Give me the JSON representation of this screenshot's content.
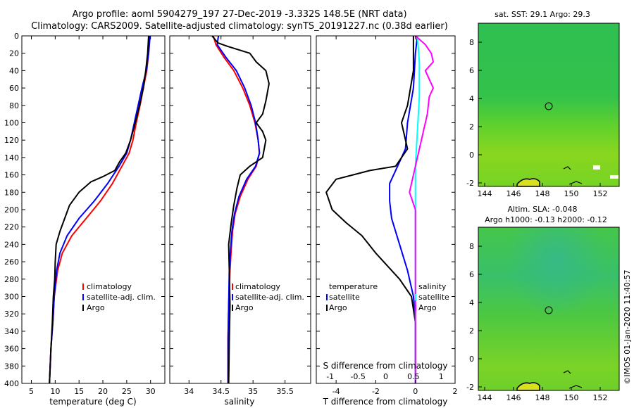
{
  "titles": {
    "line1": "Argo profile: aoml 5904279_197 27-Dec-2019 -3.332S 148.5E (NRT data)",
    "line2": "Climatology: CARS2009. Satellite-adjusted climatology: synTS_20191227.nc (0.38d earlier)"
  },
  "footer": "©IMOS 01-Jan-2020 11:40:57",
  "colors": {
    "climatology": "#ff0000",
    "satellite": "#0000ff",
    "argo": "#000000",
    "argo_sal_diff": "#ff00ff",
    "sat_sal_diff": "#00ffff"
  },
  "chart_data": [
    {
      "type": "line",
      "name": "temperature",
      "xlabel": "temperature (deg C)",
      "xlim": [
        3,
        33
      ],
      "ylim": [
        400,
        0
      ],
      "xticks": [
        5,
        10,
        15,
        20,
        25,
        30
      ],
      "yticks": [
        0,
        20,
        40,
        60,
        80,
        100,
        120,
        140,
        160,
        180,
        200,
        220,
        240,
        260,
        280,
        300,
        320,
        340,
        360,
        380,
        400
      ],
      "legend": [
        "climatology",
        "satellite-adj. clim.",
        "Argo"
      ],
      "series": [
        {
          "name": "climatology",
          "color": "#ff0000",
          "points": [
            [
              29.8,
              0
            ],
            [
              29.6,
              20
            ],
            [
              29.2,
              40
            ],
            [
              28.5,
              60
            ],
            [
              27.8,
              80
            ],
            [
              27.0,
              100
            ],
            [
              26.3,
              120
            ],
            [
              25.5,
              135
            ],
            [
              24.0,
              150
            ],
            [
              22.0,
              170
            ],
            [
              19.5,
              190
            ],
            [
              16.5,
              210
            ],
            [
              13.5,
              230
            ],
            [
              11.5,
              250
            ],
            [
              10.5,
              270
            ],
            [
              9.8,
              300
            ],
            [
              9.5,
              330
            ],
            [
              9.1,
              360
            ],
            [
              8.8,
              400
            ]
          ]
        },
        {
          "name": "satellite-adj. clim.",
          "color": "#0000ff",
          "points": [
            [
              29.9,
              0
            ],
            [
              29.6,
              20
            ],
            [
              29.1,
              40
            ],
            [
              28.2,
              60
            ],
            [
              27.4,
              80
            ],
            [
              26.6,
              100
            ],
            [
              25.8,
              120
            ],
            [
              25.0,
              135
            ],
            [
              23.4,
              150
            ],
            [
              21.0,
              170
            ],
            [
              18.2,
              190
            ],
            [
              15.0,
              210
            ],
            [
              12.5,
              230
            ],
            [
              11.0,
              250
            ],
            [
              10.3,
              270
            ],
            [
              9.8,
              300
            ],
            [
              9.5,
              330
            ],
            [
              9.1,
              360
            ],
            [
              8.8,
              400
            ]
          ]
        },
        {
          "name": "Argo",
          "color": "#000000",
          "points": [
            [
              29.6,
              0
            ],
            [
              29.4,
              20
            ],
            [
              29.0,
              40
            ],
            [
              28.5,
              60
            ],
            [
              27.7,
              80
            ],
            [
              26.8,
              100
            ],
            [
              25.8,
              120
            ],
            [
              24.8,
              135
            ],
            [
              23.5,
              145
            ],
            [
              22.5,
              155
            ],
            [
              20.0,
              162
            ],
            [
              17.5,
              168
            ],
            [
              15.0,
              180
            ],
            [
              13.0,
              195
            ],
            [
              12.0,
              210
            ],
            [
              11.0,
              225
            ],
            [
              10.2,
              240
            ],
            [
              10.0,
              260
            ],
            [
              9.9,
              280
            ],
            [
              9.6,
              300
            ],
            [
              9.4,
              330
            ],
            [
              9.1,
              360
            ],
            [
              8.8,
              400
            ]
          ]
        }
      ]
    },
    {
      "type": "line",
      "name": "salinity",
      "xlabel": "salinity",
      "xlim": [
        33.7,
        35.9
      ],
      "ylim": [
        400,
        0
      ],
      "xticks": [
        34,
        34.5,
        35,
        35.5
      ],
      "legend": [
        "climatology",
        "satellite-adj. clim.",
        "Argo"
      ],
      "series": [
        {
          "name": "climatology",
          "color": "#ff0000",
          "points": [
            [
              34.38,
              0
            ],
            [
              34.42,
              10
            ],
            [
              34.55,
              25
            ],
            [
              34.7,
              40
            ],
            [
              34.84,
              60
            ],
            [
              34.95,
              80
            ],
            [
              35.03,
              100
            ],
            [
              35.08,
              120
            ],
            [
              35.1,
              135
            ],
            [
              35.05,
              150
            ],
            [
              34.92,
              165
            ],
            [
              34.8,
              185
            ],
            [
              34.72,
              205
            ],
            [
              34.68,
              225
            ],
            [
              34.66,
              245
            ],
            [
              34.64,
              270
            ],
            [
              34.62,
              310
            ],
            [
              34.61,
              350
            ],
            [
              34.61,
              400
            ]
          ]
        },
        {
          "name": "satellite-adj. clim.",
          "color": "#0000ff",
          "points": [
            [
              34.46,
              0
            ],
            [
              34.44,
              10
            ],
            [
              34.58,
              25
            ],
            [
              34.74,
              40
            ],
            [
              34.87,
              60
            ],
            [
              34.97,
              80
            ],
            [
              35.04,
              100
            ],
            [
              35.08,
              120
            ],
            [
              35.1,
              135
            ],
            [
              35.04,
              150
            ],
            [
              34.9,
              165
            ],
            [
              34.78,
              185
            ],
            [
              34.71,
              205
            ],
            [
              34.67,
              225
            ],
            [
              34.65,
              245
            ],
            [
              34.63,
              270
            ],
            [
              34.62,
              310
            ],
            [
              34.61,
              350
            ],
            [
              34.61,
              400
            ]
          ]
        },
        {
          "name": "Argo",
          "color": "#000000",
          "points": [
            [
              34.36,
              0
            ],
            [
              34.45,
              8
            ],
            [
              34.6,
              12
            ],
            [
              34.95,
              20
            ],
            [
              35.05,
              30
            ],
            [
              35.2,
              40
            ],
            [
              35.25,
              55
            ],
            [
              35.2,
              75
            ],
            [
              35.15,
              90
            ],
            [
              35.05,
              100
            ],
            [
              35.15,
              110
            ],
            [
              35.2,
              120
            ],
            [
              35.15,
              140
            ],
            [
              34.95,
              150
            ],
            [
              34.8,
              160
            ],
            [
              34.75,
              175
            ],
            [
              34.7,
              195
            ],
            [
              34.66,
              215
            ],
            [
              34.62,
              240
            ],
            [
              34.63,
              270
            ],
            [
              34.64,
              310
            ],
            [
              34.63,
              350
            ],
            [
              34.62,
              400
            ]
          ]
        }
      ]
    },
    {
      "type": "line",
      "name": "differences",
      "xlabel": "T difference from climatology",
      "top_xlabel": "S difference from climatology",
      "xlim": [
        -5,
        2
      ],
      "ylim": [
        400,
        0
      ],
      "xticks": [
        -4,
        -2,
        0,
        2
      ],
      "top_xticks": [
        "-1",
        "-0.5",
        "0",
        "0.5",
        "1"
      ],
      "legend_t": [
        "temperature",
        "satellite",
        "Argo"
      ],
      "legend_s": [
        "salinity",
        "satellite",
        "Argo"
      ],
      "series": [
        {
          "name": "satellite T",
          "color": "#0000ff",
          "points": [
            [
              0.1,
              0
            ],
            [
              0,
              20
            ],
            [
              -0.1,
              60
            ],
            [
              -0.4,
              100
            ],
            [
              -0.5,
              130
            ],
            [
              -0.9,
              150
            ],
            [
              -1.3,
              170
            ],
            [
              -1.3,
              190
            ],
            [
              -1.2,
              210
            ],
            [
              -0.8,
              240
            ],
            [
              -0.4,
              270
            ],
            [
              -0.1,
              300
            ],
            [
              0,
              330
            ],
            [
              0,
              400
            ]
          ]
        },
        {
          "name": "Argo T",
          "color": "#000000",
          "points": [
            [
              -0.1,
              0
            ],
            [
              -0.1,
              40
            ],
            [
              -0.4,
              80
            ],
            [
              -0.7,
              100
            ],
            [
              -0.4,
              130
            ],
            [
              -1.0,
              150
            ],
            [
              -2.3,
              155
            ],
            [
              -4.0,
              165
            ],
            [
              -4.5,
              180
            ],
            [
              -4.2,
              200
            ],
            [
              -3.5,
              215
            ],
            [
              -2.7,
              230
            ],
            [
              -2.0,
              250
            ],
            [
              -1.4,
              265
            ],
            [
              -0.8,
              280
            ],
            [
              -0.2,
              300
            ],
            [
              0,
              330
            ],
            [
              0,
              400
            ]
          ]
        },
        {
          "name": "satellite S",
          "color": "#00ffff",
          "points": [
            [
              0.1,
              0
            ],
            [
              0.2,
              30
            ],
            [
              0.2,
              70
            ],
            [
              0.1,
              110
            ],
            [
              0,
              150
            ],
            [
              0,
              200
            ],
            [
              0,
              260
            ],
            [
              0,
              320
            ],
            [
              0,
              400
            ]
          ]
        },
        {
          "name": "Argo S",
          "color": "#ff00ff",
          "points": [
            [
              0,
              0
            ],
            [
              0.5,
              10
            ],
            [
              0.8,
              20
            ],
            [
              0.9,
              30
            ],
            [
              0.5,
              40
            ],
            [
              0.9,
              60
            ],
            [
              0.7,
              70
            ],
            [
              0.6,
              90
            ],
            [
              0.3,
              120
            ],
            [
              0,
              150
            ],
            [
              -0.3,
              180
            ],
            [
              0,
              200
            ],
            [
              0,
              250
            ],
            [
              0,
              320
            ],
            [
              0,
              400
            ]
          ]
        }
      ]
    }
  ],
  "maps": [
    {
      "title": "sat. SST: 29.1 Argo: 29.3",
      "xticks": [
        "144",
        "146",
        "148",
        "150",
        "152"
      ],
      "yticks": [
        "8",
        "6",
        "4",
        "2",
        "0",
        "-2"
      ]
    },
    {
      "title": "Altim. SLA: -0.048",
      "subtitle": "Argo h1000: -0.13 h2000: -0.12",
      "xticks": [
        "144",
        "146",
        "148",
        "150",
        "152"
      ],
      "yticks": [
        "8",
        "6",
        "4",
        "2",
        "0",
        "-2"
      ]
    }
  ]
}
